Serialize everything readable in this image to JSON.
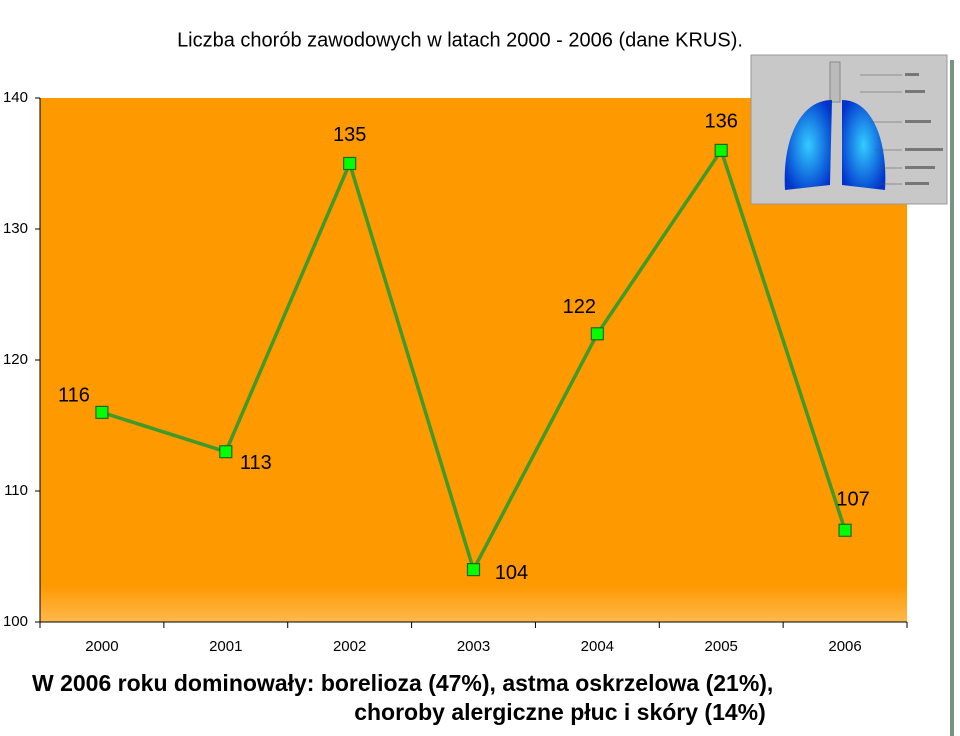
{
  "chart_data": {
    "type": "line",
    "title": "Liczba chorób zawodowych w latach 2000 - 2006 (dane KRUS).",
    "categories": [
      "2000",
      "2001",
      "2002",
      "2003",
      "2004",
      "2005",
      "2006"
    ],
    "series": [
      {
        "color": "#3f9a2a",
        "values": [
          116,
          113,
          135,
          104,
          122,
          136,
          107
        ]
      }
    ],
    "ylim": [
      100,
      140
    ],
    "yticks": [
      100,
      110,
      120,
      130,
      140
    ],
    "annotations": [
      "W 2006 roku dominowały: borelioza (47%), astma oskrzelowa (21%),",
      "choroby alergiczne płuc i skóry (14%)"
    ]
  }
}
